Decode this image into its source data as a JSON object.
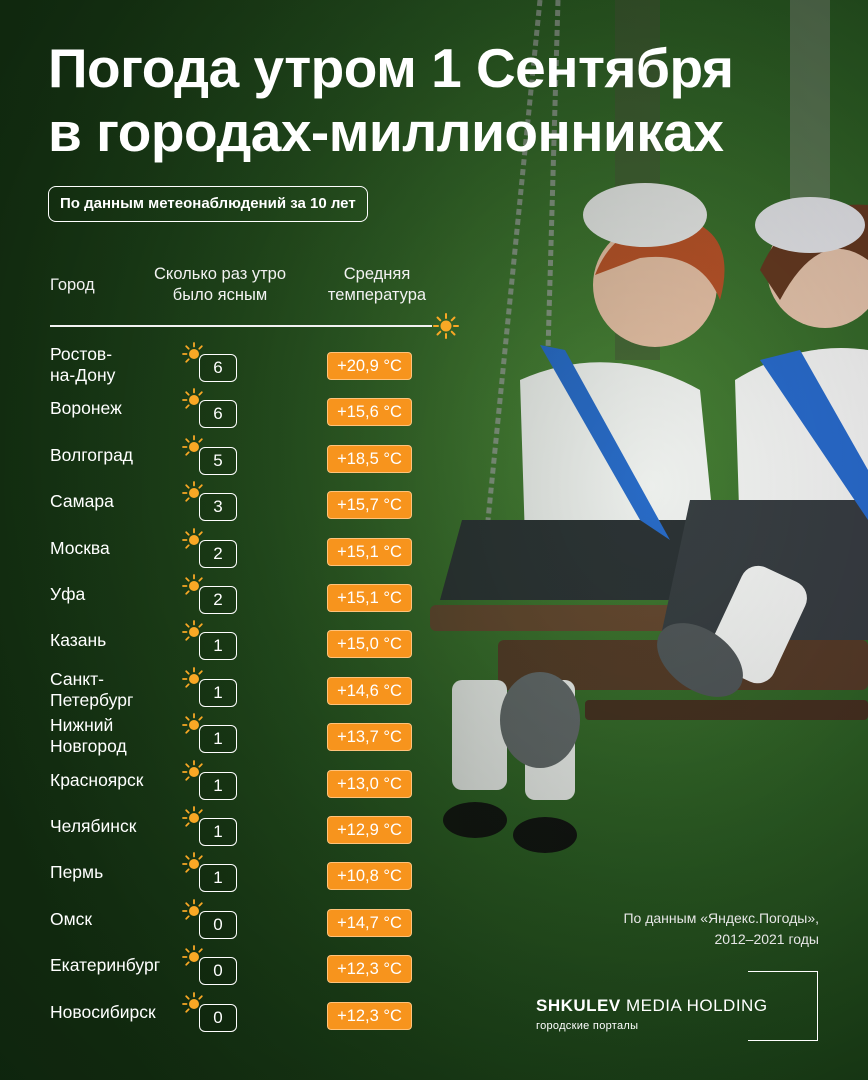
{
  "title": {
    "line1": "Погода утром 1 Сентября",
    "line2": "в городах-миллионниках"
  },
  "subtitle": "По данным метеонаблюдений за 10 лет",
  "columns": {
    "city": "Город",
    "clear_line1": "Сколько раз утро",
    "clear_line2": "было ясным",
    "temp_line1": "Средняя",
    "temp_line2": "температура"
  },
  "rows": [
    {
      "city": [
        "Ростов-",
        "на-Дону"
      ],
      "clear": "6",
      "temp": "+20,9 °C"
    },
    {
      "city": [
        "Воронеж"
      ],
      "clear": "6",
      "temp": "+15,6 °C"
    },
    {
      "city": [
        "Волгоград"
      ],
      "clear": "5",
      "temp": "+18,5 °C"
    },
    {
      "city": [
        "Самара"
      ],
      "clear": "3",
      "temp": "+15,7 °C"
    },
    {
      "city": [
        "Москва"
      ],
      "clear": "2",
      "temp": "+15,1 °C"
    },
    {
      "city": [
        "Уфа"
      ],
      "clear": "2",
      "temp": "+15,1 °C"
    },
    {
      "city": [
        "Казань"
      ],
      "clear": "1",
      "temp": "+15,0 °C"
    },
    {
      "city": [
        "Санкт-",
        "Петербург"
      ],
      "clear": "1",
      "temp": "+14,6 °C"
    },
    {
      "city": [
        "Нижний",
        "Новгород"
      ],
      "clear": "1",
      "temp": "+13,7 °C"
    },
    {
      "city": [
        "Красноярск"
      ],
      "clear": "1",
      "temp": "+13,0 °C"
    },
    {
      "city": [
        "Челябинск"
      ],
      "clear": "1",
      "temp": "+12,9 °C"
    },
    {
      "city": [
        "Пермь"
      ],
      "clear": "1",
      "temp": "+10,8 °C"
    },
    {
      "city": [
        "Омск"
      ],
      "clear": "0",
      "temp": "+14,7 °C"
    },
    {
      "city": [
        "Екатеринбург"
      ],
      "clear": "0",
      "temp": "+12,3 °C"
    },
    {
      "city": [
        "Новосибирск"
      ],
      "clear": "0",
      "temp": "+12,3 °C"
    }
  ],
  "source": {
    "line1": "По данным «Яндекс.Погоды»,",
    "line2": "2012–2021 годы"
  },
  "brand": {
    "name_bold": "SHKULEV",
    "name_regular": " MEDIA HOLDING",
    "tagline": "городские порталы"
  },
  "colors": {
    "background": "#2f6326",
    "accent_orange": "#f7941d",
    "sun_yellow": "#f9a825"
  },
  "icons": {
    "sun": "sun-icon"
  }
}
